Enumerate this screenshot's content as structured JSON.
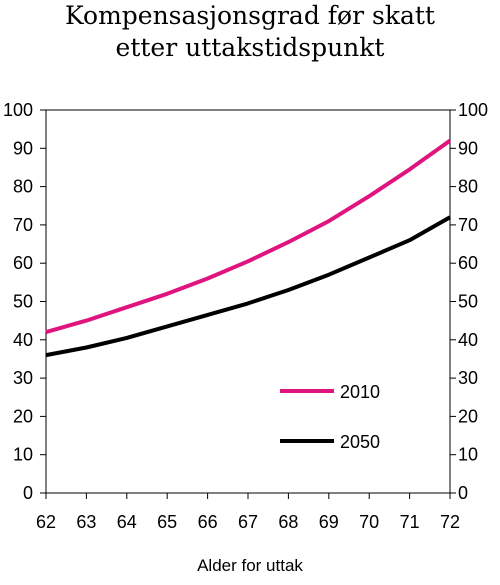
{
  "chart_data": {
    "type": "line",
    "title": [
      "Kompensasjonsgrad før skatt",
      "etter uttakstidspunkt"
    ],
    "xlabel": "Alder for uttak",
    "ylabel": "",
    "x": [
      62,
      63,
      64,
      65,
      66,
      67,
      68,
      69,
      70,
      71,
      72
    ],
    "xlim": [
      62,
      72
    ],
    "ylim": [
      0,
      100
    ],
    "yticks": [
      0,
      10,
      20,
      30,
      40,
      50,
      60,
      70,
      80,
      90,
      100
    ],
    "y_axis_both_sides": true,
    "grid": false,
    "legend_position": "bottom-right",
    "series": [
      {
        "name": "2010",
        "color": "#e0147f",
        "values": [
          42,
          45,
          48.5,
          52,
          56,
          60.5,
          65.5,
          71,
          77.5,
          84.5,
          92
        ]
      },
      {
        "name": "2050",
        "color": "#000000",
        "values": [
          36,
          38,
          40.5,
          43.5,
          46.5,
          49.5,
          53,
          57,
          61.5,
          66,
          72
        ]
      }
    ]
  }
}
